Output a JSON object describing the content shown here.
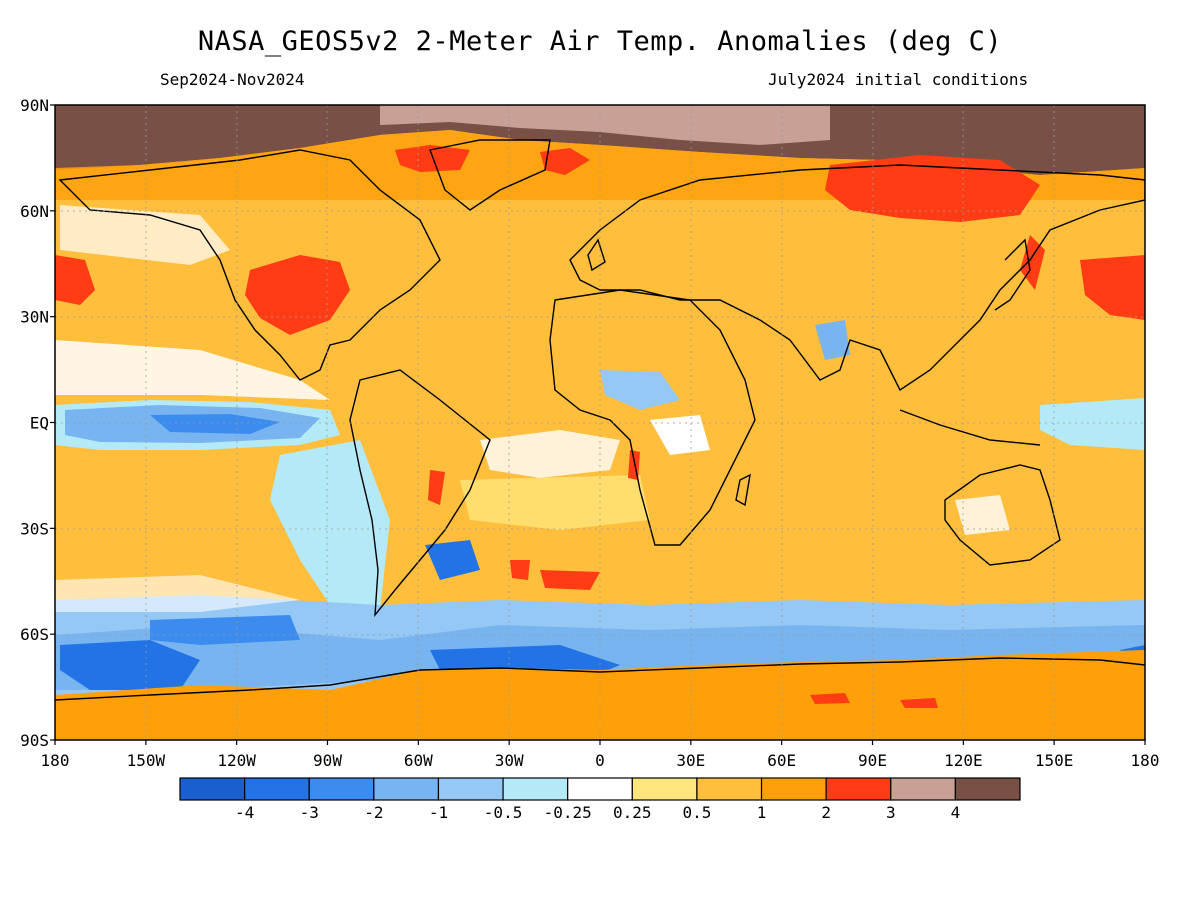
{
  "title": "NASA_GEOS5v2 2-Meter Air Temp. Anomalies (deg C)",
  "period": "Sep2024-Nov2024",
  "initial_conditions": "July2024 initial conditions",
  "lat_labels": [
    "90N",
    "60N",
    "30N",
    "EQ",
    "30S",
    "60S",
    "90S"
  ],
  "lon_labels": [
    "180",
    "150W",
    "120W",
    "90W",
    "60W",
    "30W",
    "0",
    "30E",
    "60E",
    "90E",
    "120E",
    "150E",
    "180"
  ],
  "legend": {
    "labels": [
      "-4",
      "-3",
      "-2",
      "-1",
      "-0.5",
      "-0.25",
      "0.25",
      "0.5",
      "1",
      "2",
      "3",
      "4"
    ],
    "colors": [
      "#1a5fcf",
      "#2273e6",
      "#3c8cf0",
      "#78b4f0",
      "#96c8f5",
      "#b4eaf7",
      "#ffffff",
      "#ffe67a",
      "#ffbe3c",
      "#ffa00a",
      "#ff3c14",
      "#c8a096",
      "#785046"
    ]
  }
}
